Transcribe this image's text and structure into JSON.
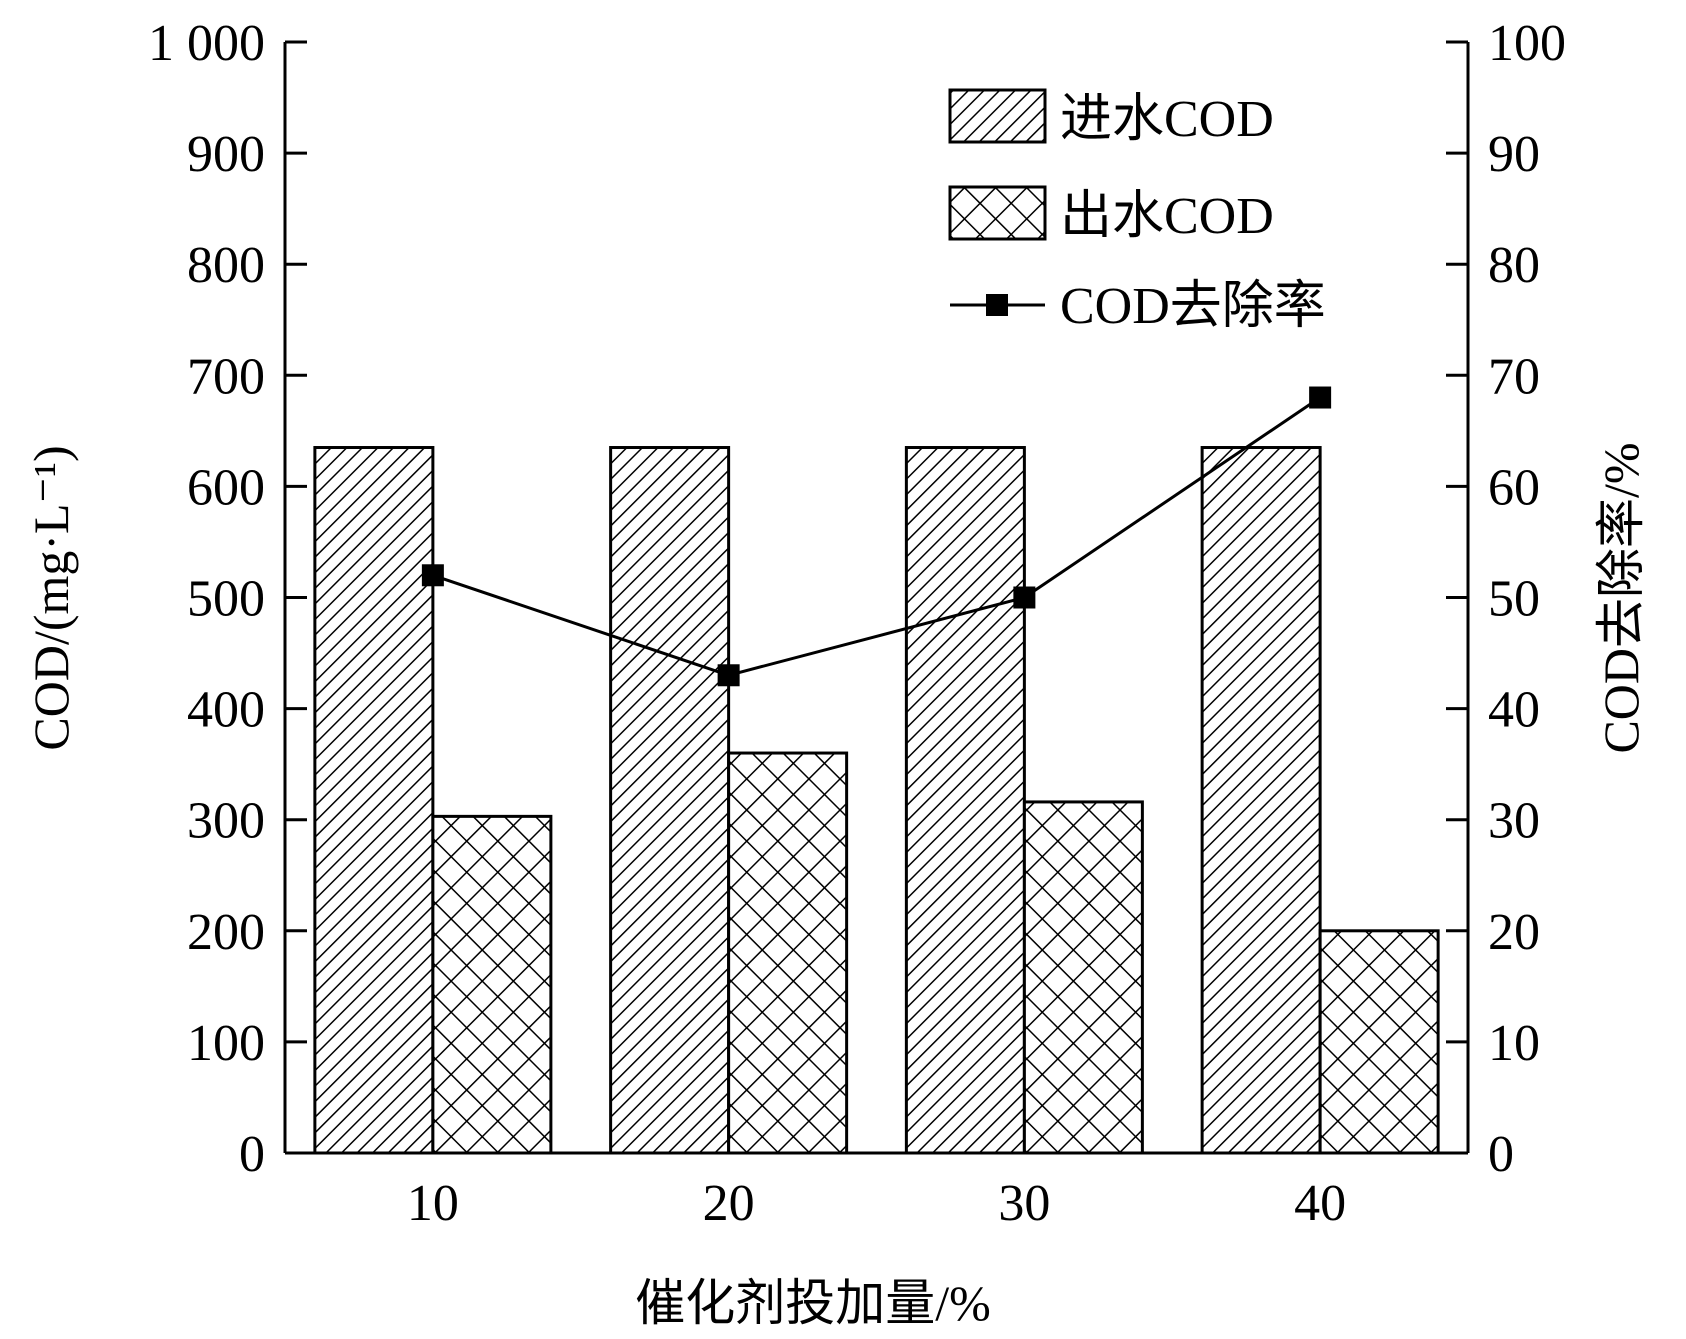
{
  "chart_data": {
    "type": "bar",
    "categories": [
      "10",
      "20",
      "30",
      "40"
    ],
    "xlabel": "催化剂投加量/%",
    "ylabel": "COD/(mg·L⁻¹)",
    "y2label": "COD去除率/%",
    "ylim": [
      0,
      1000
    ],
    "y2lim": [
      0,
      100
    ],
    "yticks": [
      "0",
      "100",
      "200",
      "300",
      "400",
      "500",
      "600",
      "700",
      "800",
      "900",
      "1 000"
    ],
    "y2ticks": [
      "0",
      "10",
      "20",
      "30",
      "40",
      "50",
      "60",
      "70",
      "80",
      "90",
      "100"
    ],
    "legend_position": "top-right",
    "series": [
      {
        "name": "进水COD",
        "kind": "bar",
        "pattern": "diagonal-hatch",
        "axis": "left",
        "values": [
          635,
          635,
          635,
          635
        ]
      },
      {
        "name": "出水COD",
        "kind": "bar",
        "pattern": "cross-hatch",
        "axis": "left",
        "values": [
          303,
          360,
          316,
          200
        ]
      },
      {
        "name": "COD去除率",
        "kind": "line",
        "marker": "square",
        "axis": "right",
        "values": [
          52,
          43,
          50,
          68
        ]
      }
    ]
  }
}
